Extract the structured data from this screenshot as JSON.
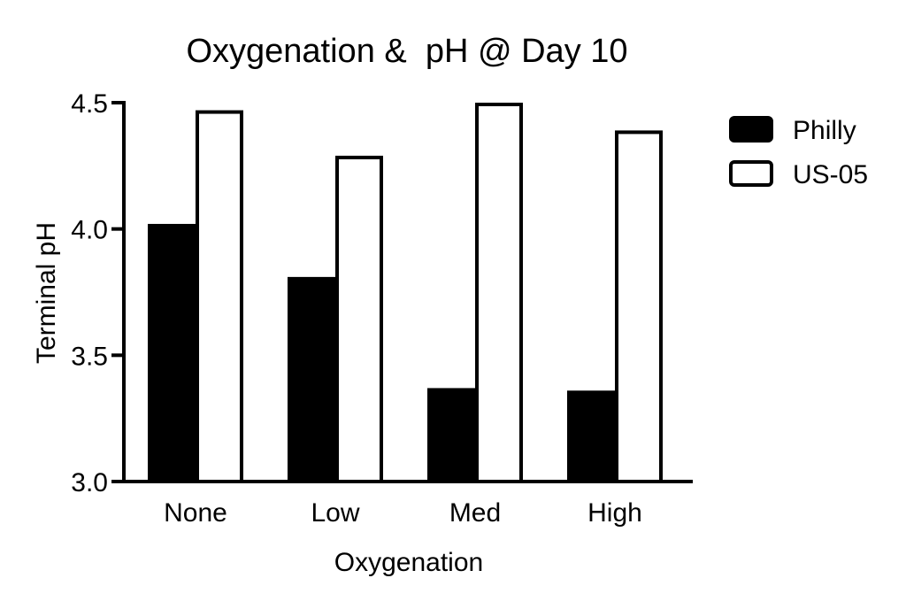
{
  "chart_data": {
    "type": "bar",
    "title": "Oxygenation &  pH @ Day 10",
    "xlabel": "Oxygenation",
    "ylabel": "Terminal pH",
    "categories": [
      "None",
      "Low",
      "Med",
      "High"
    ],
    "series": [
      {
        "name": "Philly",
        "values": [
          4.02,
          3.81,
          3.37,
          3.36
        ],
        "fill": "#000000",
        "stroke": "#000000"
      },
      {
        "name": "US-05",
        "values": [
          4.47,
          4.29,
          4.5,
          4.39
        ],
        "fill": "#ffffff",
        "stroke": "#000000"
      }
    ],
    "ylim": [
      3.0,
      4.5
    ],
    "yticks": [
      "3.0",
      "3.5",
      "4.0",
      "4.5"
    ],
    "grid": false,
    "legend_position": "right"
  }
}
